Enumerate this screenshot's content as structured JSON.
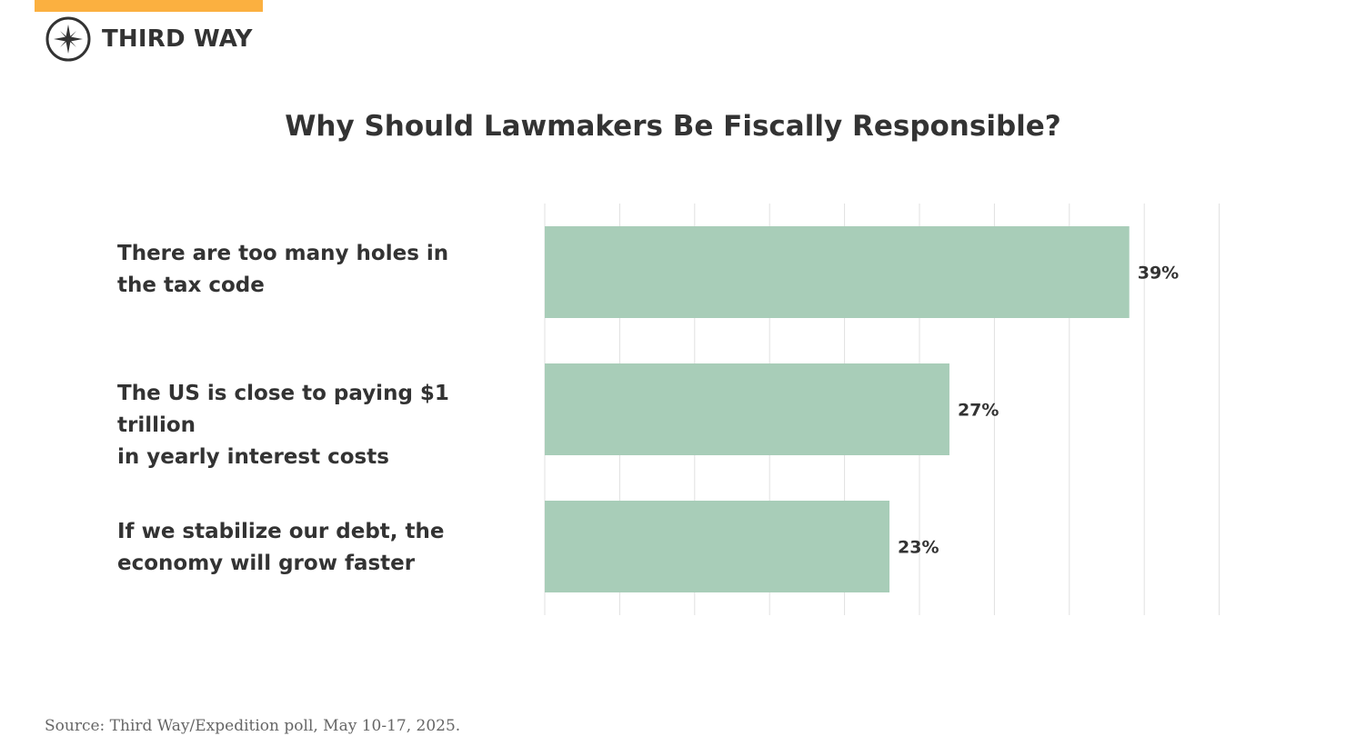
{
  "brand": {
    "name": "THIRD WAY",
    "accent_color": "#fbb040",
    "logo_icon": "compass-star-icon"
  },
  "chart_data": {
    "type": "bar",
    "orientation": "horizontal",
    "title": "Why Should Lawmakers Be Fiscally Responsible?",
    "categories": [
      "There are too many holes in\nthe tax code",
      "The US is close to paying $1 trillion\nin yearly interest costs",
      "If we stabilize our debt, the\neconomy will grow faster"
    ],
    "values": [
      39,
      27,
      23
    ],
    "value_labels": [
      "39%",
      "27%",
      "23%"
    ],
    "xlim": [
      0,
      45
    ],
    "grid": true,
    "bar_color": "#a8cdb8",
    "grid_color": "#e0e0e0"
  },
  "source": "Source: Third Way/Expedition poll, May 10-17, 2025."
}
